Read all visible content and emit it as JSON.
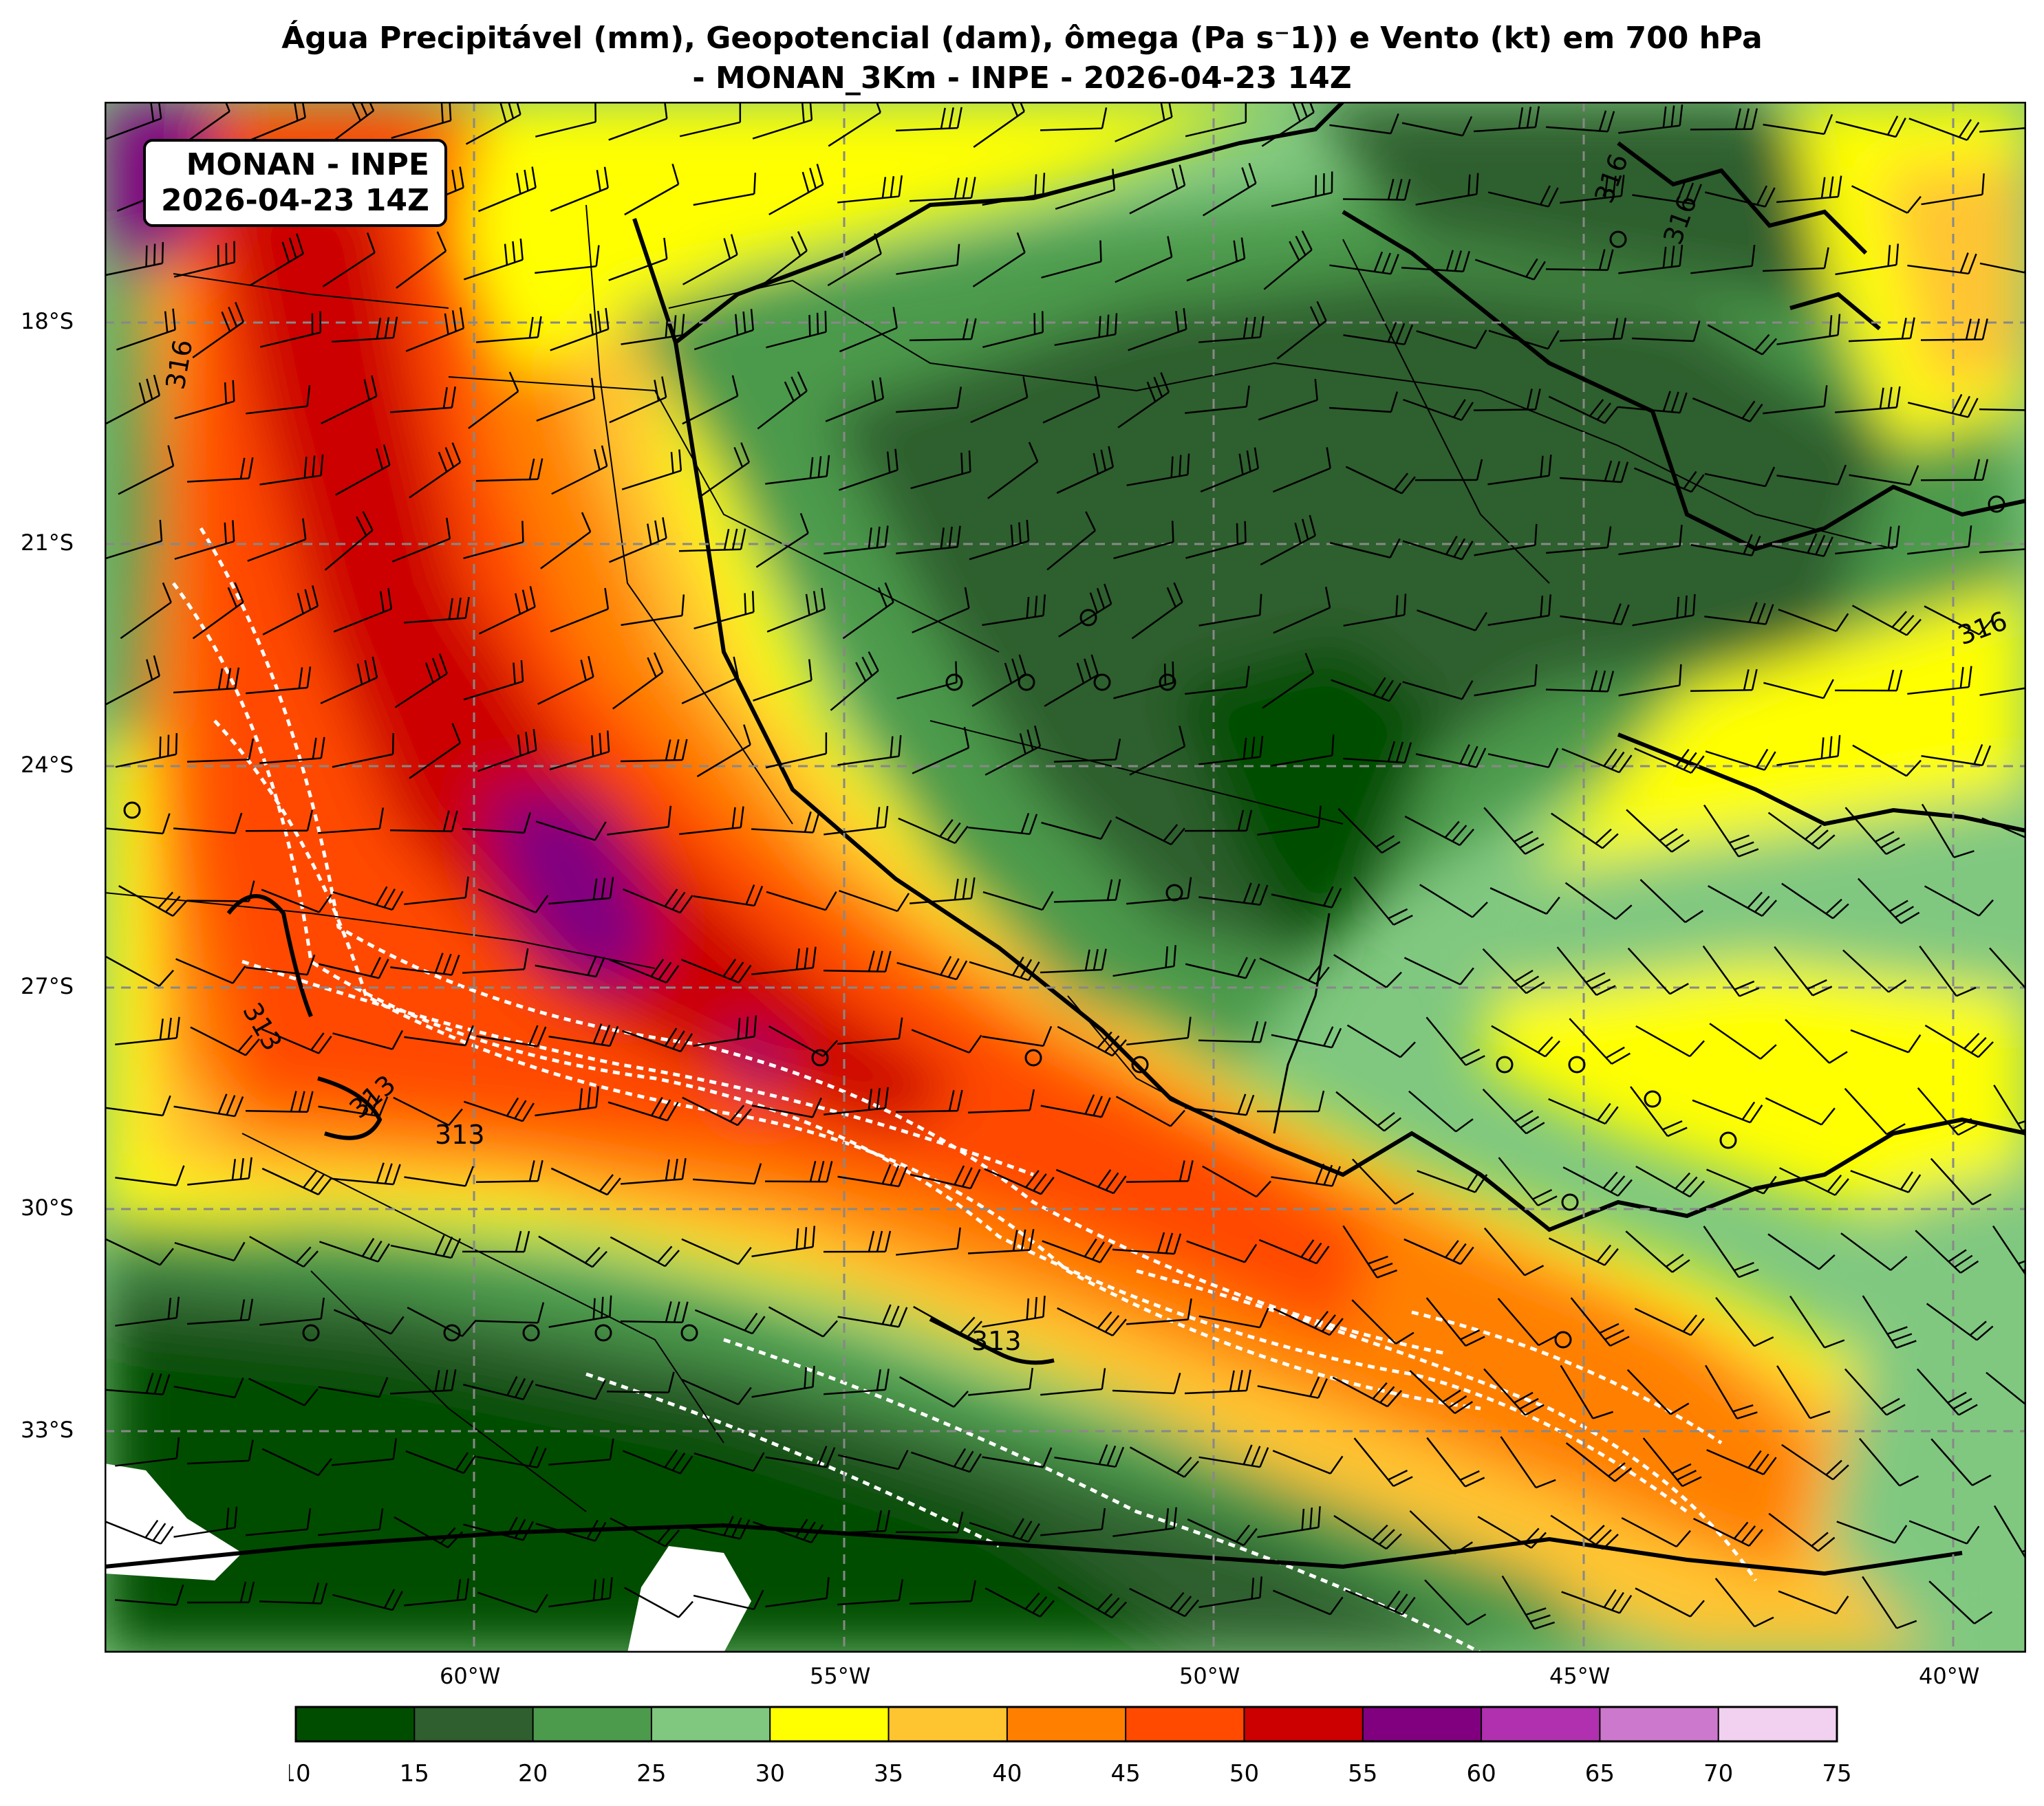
{
  "title": {
    "line1": "Água Precipitável (mm), Geopotencial (dam), ômega (Pa s⁻1)) e Vento (kt) em 700 hPa",
    "line2": "- MONAN_3Km - INPE - 2026-04-23 14Z"
  },
  "stamp": {
    "line1": "MONAN - INPE",
    "line2": "2026-04-23 14Z"
  },
  "lat_labels": [
    "18°S",
    "21°S",
    "24°S",
    "27°S",
    "30°S",
    "33°S"
  ],
  "lon_labels": [
    "60°W",
    "55°W",
    "50°W",
    "45°W",
    "40°W"
  ],
  "contour_labels": [
    "316",
    "316",
    "316",
    "316",
    "313",
    "313",
    "313",
    "313"
  ],
  "colorbar": {
    "ticks": [
      "10",
      "15",
      "20",
      "25",
      "30",
      "35",
      "40",
      "45",
      "50",
      "55",
      "60",
      "65",
      "70",
      "75"
    ],
    "colors": [
      "#004d00",
      "#2f5f2f",
      "#4c9a4c",
      "#80c880",
      "#ffff00",
      "#ffc530",
      "#ff8000",
      "#ff4a00",
      "#cc0000",
      "#800080",
      "#b030b0",
      "#cc78cc",
      "#f2d0f0"
    ]
  },
  "colors": {
    "calm_circle": "#000000",
    "omega_contour": "#ffffff",
    "geopotential_contour": "#000000"
  }
}
